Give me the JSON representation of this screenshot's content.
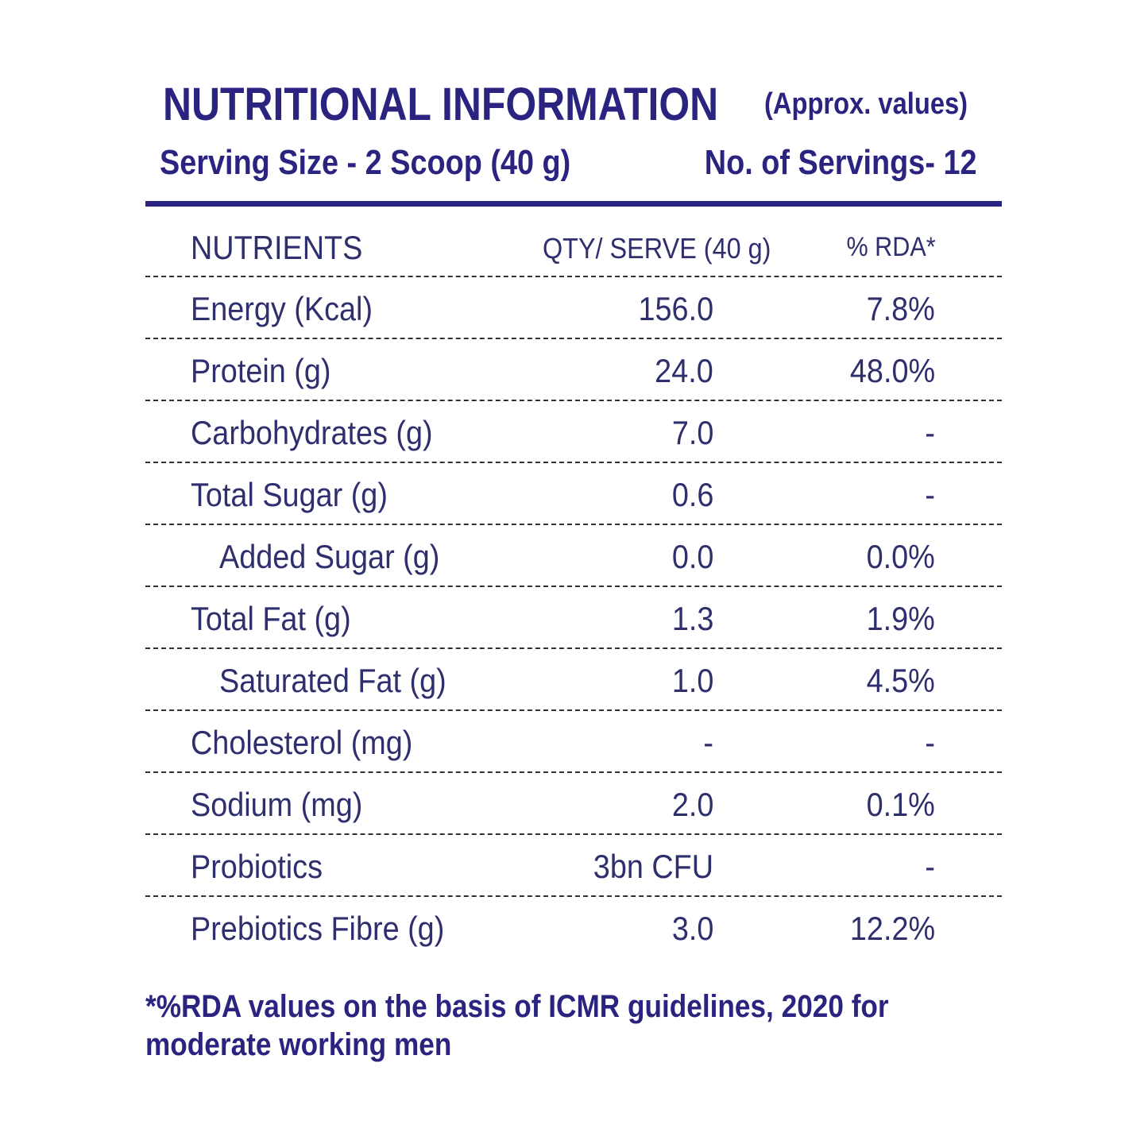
{
  "header": {
    "title": "NUTRITIONAL INFORMATION",
    "approx": "(Approx. values)",
    "serving_size": "Serving Size - 2 Scoop (40 g)",
    "servings_count": "No. of Servings- 12"
  },
  "table": {
    "columns": [
      "NUTRIENTS",
      "QTY/ SERVE (40 g)",
      "% RDA*"
    ],
    "rows": [
      {
        "name": "Energy (Kcal)",
        "qty": "156.0",
        "rda": "7.8%"
      },
      {
        "name": "Protein (g)",
        "qty": "24.0",
        "rda": "48.0%"
      },
      {
        "name": "Carbohydrates (g)",
        "qty": "7.0",
        "rda": "-"
      },
      {
        "name": "Total Sugar (g)",
        "qty": "0.6",
        "rda": "-"
      },
      {
        "name": "Added Sugar (g)",
        "qty": "0.0",
        "rda": "0.0%"
      },
      {
        "name": "Total Fat (g)",
        "qty": "1.3",
        "rda": "1.9%"
      },
      {
        "name": "Saturated Fat (g)",
        "qty": "1.0",
        "rda": "4.5%"
      },
      {
        "name": "Cholesterol (mg)",
        "qty": "-",
        "rda": "-"
      },
      {
        "name": "Sodium (mg)",
        "qty": "2.0",
        "rda": "0.1%"
      },
      {
        "name": "Probiotics",
        "qty": "3bn CFU",
        "rda": "-"
      },
      {
        "name": "Prebiotics Fibre (g)",
        "qty": "3.0",
        "rda": "12.2%"
      }
    ]
  },
  "footnote": {
    "line1": "*%RDA values on the basis of ICMR guidelines, 2020 for",
    "line2": "moderate working men"
  },
  "colors": {
    "accent": "#2b2380",
    "text": "#2f2f6e"
  }
}
